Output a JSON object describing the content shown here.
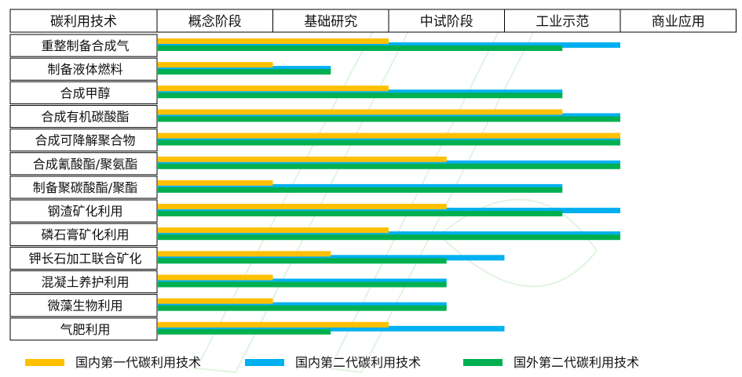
{
  "chart_data": {
    "type": "bar",
    "orientation": "horizontal",
    "stages_header": "碳利用技术",
    "stages": [
      "概念阶段",
      "基础研究",
      "中试阶段",
      "工业示范",
      "商业应用"
    ],
    "categories": [
      "重整制备合成气",
      "制备液体燃料",
      "合成甲醇",
      "合成有机碳酸酯",
      "合成可降解聚合物",
      "合成氰酸酯/聚氨酯",
      "制备聚碳酸酯/聚酯",
      "钢渣矿化利用",
      "磷石膏矿化利用",
      "钾长石加工联合矿化",
      "混凝土养护利用",
      "微藻生物利用",
      "气肥利用"
    ],
    "scale": "stage position (0 = start of 概念阶段, 5 = end of 商业应用)",
    "xlim": [
      0,
      5
    ],
    "series": [
      {
        "name": "国内第一代碳利用技术",
        "color": "#ffc000",
        "values": [
          2.0,
          1.0,
          2.0,
          3.5,
          4.0,
          2.5,
          1.0,
          2.5,
          2.0,
          1.5,
          1.0,
          1.0,
          2.0
        ]
      },
      {
        "name": "国内第二代碳利用技术",
        "color": "#00b0f0",
        "values": [
          4.0,
          1.5,
          3.5,
          4.0,
          4.0,
          4.0,
          3.5,
          4.0,
          4.0,
          3.0,
          2.5,
          2.5,
          3.0
        ]
      },
      {
        "name": "国外第二代碳利用技术",
        "color": "#00b050",
        "values": [
          3.5,
          1.5,
          3.5,
          4.0,
          4.0,
          4.0,
          3.5,
          3.5,
          4.0,
          2.5,
          2.5,
          2.5,
          1.5
        ]
      }
    ],
    "legend_position": "bottom",
    "grid": false
  }
}
